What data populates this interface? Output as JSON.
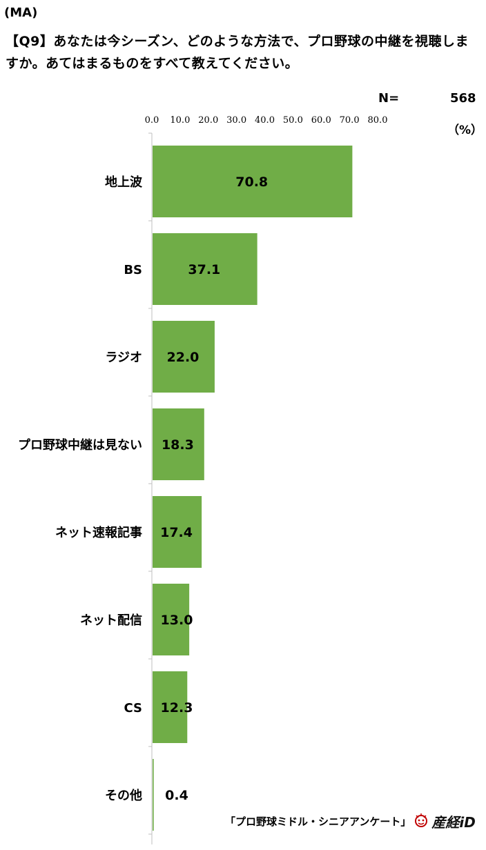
{
  "header": {
    "ma": "(MA)",
    "question": "【Q9】あなたは今シーズン、どのような方法で、プロ野球の中継を視聴しますか。あてはまるものをすべて教えてください。",
    "n_label": "N=",
    "n_value": "568",
    "unit": "（%）"
  },
  "footer": {
    "source": "「プロ野球ミドル・シニアアンケート」",
    "logo_text": "産経iD",
    "logo_icon": "sankei-face-icon"
  },
  "colors": {
    "bar": "#70ad47",
    "axis": "#bfbfbf"
  },
  "chart_data": {
    "type": "bar",
    "orientation": "horizontal",
    "categories": [
      "地上波",
      "BS",
      "ラジオ",
      "プロ野球中継は見ない",
      "ネット速報記事",
      "ネット配信",
      "CS",
      "その他"
    ],
    "values": [
      70.8,
      37.1,
      22.0,
      18.3,
      17.4,
      13.0,
      12.3,
      0.4
    ],
    "value_labels": [
      "70.8",
      "37.1",
      "22.0",
      "18.3",
      "17.4",
      "13.0",
      "12.3",
      "0.4"
    ],
    "xlim": [
      0,
      80
    ],
    "ticks": [
      "0.0",
      "10.0",
      "20.0",
      "30.0",
      "40.0",
      "50.0",
      "60.0",
      "70.0",
      "80.0"
    ],
    "tick_values": [
      0,
      10,
      20,
      30,
      40,
      50,
      60,
      70,
      80
    ],
    "grid": false,
    "legend": "none"
  }
}
